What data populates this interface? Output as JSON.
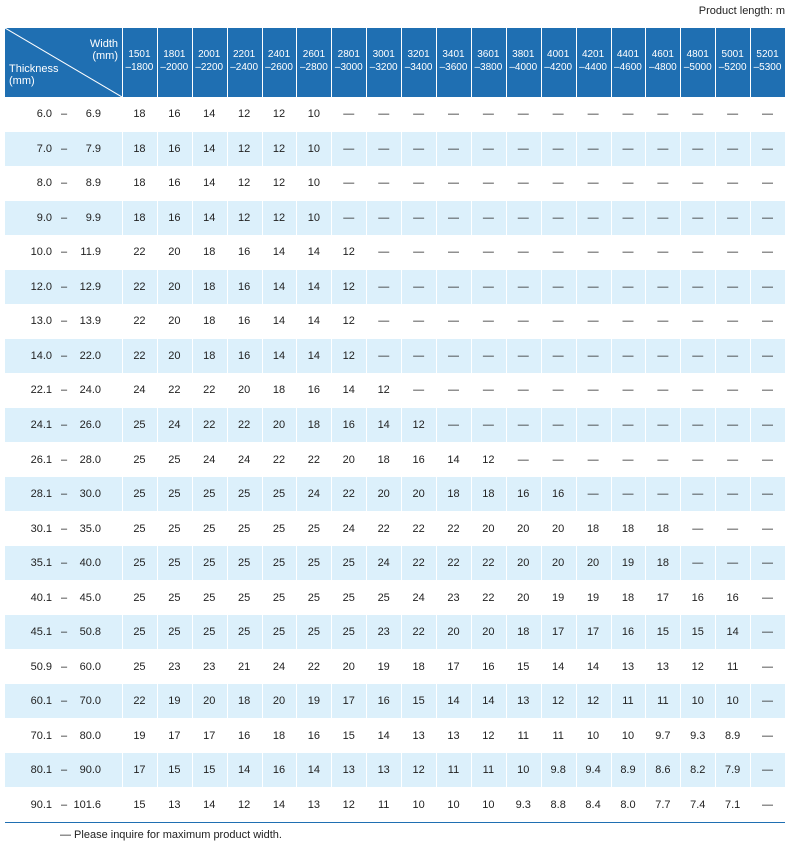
{
  "note_top": "Product length: m",
  "header": {
    "width": [
      "Width",
      "(mm)"
    ],
    "thickness": [
      "Thickness",
      "(mm)"
    ]
  },
  "columns": [
    [
      "1501",
      "–1800"
    ],
    [
      "1801",
      "–2000"
    ],
    [
      "2001",
      "–2200"
    ],
    [
      "2201",
      "–2400"
    ],
    [
      "2401",
      "–2600"
    ],
    [
      "2601",
      "–2800"
    ],
    [
      "2801",
      "–3000"
    ],
    [
      "3001",
      "–3200"
    ],
    [
      "3201",
      "–3400"
    ],
    [
      "3401",
      "–3600"
    ],
    [
      "3601",
      "–3800"
    ],
    [
      "3801",
      "–4000"
    ],
    [
      "4001",
      "–4200"
    ],
    [
      "4201",
      "–4400"
    ],
    [
      "4401",
      "–4600"
    ],
    [
      "4601",
      "–4800"
    ],
    [
      "4801",
      "–5000"
    ],
    [
      "5001",
      "–5200"
    ],
    [
      "5201",
      "–5300"
    ]
  ],
  "range_separator": "–",
  "rows": [
    {
      "from": "6.0",
      "to": "6.9",
      "values": [
        "18",
        "16",
        "14",
        "12",
        "12",
        "10",
        "—",
        "—",
        "—",
        "—",
        "—",
        "—",
        "—",
        "—",
        "—",
        "—",
        "—",
        "—",
        "—"
      ]
    },
    {
      "from": "7.0",
      "to": "7.9",
      "values": [
        "18",
        "16",
        "14",
        "12",
        "12",
        "10",
        "—",
        "—",
        "—",
        "—",
        "—",
        "—",
        "—",
        "—",
        "—",
        "—",
        "—",
        "—",
        "—"
      ]
    },
    {
      "from": "8.0",
      "to": "8.9",
      "values": [
        "18",
        "16",
        "14",
        "12",
        "12",
        "10",
        "—",
        "—",
        "—",
        "—",
        "—",
        "—",
        "—",
        "—",
        "—",
        "—",
        "—",
        "—",
        "—"
      ]
    },
    {
      "from": "9.0",
      "to": "9.9",
      "values": [
        "18",
        "16",
        "14",
        "12",
        "12",
        "10",
        "—",
        "—",
        "—",
        "—",
        "—",
        "—",
        "—",
        "—",
        "—",
        "—",
        "—",
        "—",
        "—"
      ]
    },
    {
      "from": "10.0",
      "to": "11.9",
      "values": [
        "22",
        "20",
        "18",
        "16",
        "14",
        "14",
        "12",
        "—",
        "—",
        "—",
        "—",
        "—",
        "—",
        "—",
        "—",
        "—",
        "—",
        "—",
        "—"
      ]
    },
    {
      "from": "12.0",
      "to": "12.9",
      "values": [
        "22",
        "20",
        "18",
        "16",
        "14",
        "14",
        "12",
        "—",
        "—",
        "—",
        "—",
        "—",
        "—",
        "—",
        "—",
        "—",
        "—",
        "—",
        "—"
      ]
    },
    {
      "from": "13.0",
      "to": "13.9",
      "values": [
        "22",
        "20",
        "18",
        "16",
        "14",
        "14",
        "12",
        "—",
        "—",
        "—",
        "—",
        "—",
        "—",
        "—",
        "—",
        "—",
        "—",
        "—",
        "—"
      ]
    },
    {
      "from": "14.0",
      "to": "22.0",
      "values": [
        "22",
        "20",
        "18",
        "16",
        "14",
        "14",
        "12",
        "—",
        "—",
        "—",
        "—",
        "—",
        "—",
        "—",
        "—",
        "—",
        "—",
        "—",
        "—"
      ]
    },
    {
      "from": "22.1",
      "to": "24.0",
      "values": [
        "24",
        "22",
        "22",
        "20",
        "18",
        "16",
        "14",
        "12",
        "—",
        "—",
        "—",
        "—",
        "—",
        "—",
        "—",
        "—",
        "—",
        "—",
        "—"
      ]
    },
    {
      "from": "24.1",
      "to": "26.0",
      "values": [
        "25",
        "24",
        "22",
        "22",
        "20",
        "18",
        "16",
        "14",
        "12",
        "—",
        "—",
        "—",
        "—",
        "—",
        "—",
        "—",
        "—",
        "—",
        "—"
      ]
    },
    {
      "from": "26.1",
      "to": "28.0",
      "values": [
        "25",
        "25",
        "24",
        "24",
        "22",
        "22",
        "20",
        "18",
        "16",
        "14",
        "12",
        "—",
        "—",
        "—",
        "—",
        "—",
        "—",
        "—",
        "—"
      ]
    },
    {
      "from": "28.1",
      "to": "30.0",
      "values": [
        "25",
        "25",
        "25",
        "25",
        "25",
        "24",
        "22",
        "20",
        "20",
        "18",
        "18",
        "16",
        "16",
        "—",
        "—",
        "—",
        "—",
        "—",
        "—"
      ]
    },
    {
      "from": "30.1",
      "to": "35.0",
      "values": [
        "25",
        "25",
        "25",
        "25",
        "25",
        "25",
        "24",
        "22",
        "22",
        "22",
        "20",
        "20",
        "20",
        "18",
        "18",
        "18",
        "—",
        "—",
        "—"
      ]
    },
    {
      "from": "35.1",
      "to": "40.0",
      "values": [
        "25",
        "25",
        "25",
        "25",
        "25",
        "25",
        "25",
        "24",
        "22",
        "22",
        "22",
        "20",
        "20",
        "20",
        "19",
        "18",
        "—",
        "—",
        "—"
      ]
    },
    {
      "from": "40.1",
      "to": "45.0",
      "values": [
        "25",
        "25",
        "25",
        "25",
        "25",
        "25",
        "25",
        "25",
        "24",
        "23",
        "22",
        "20",
        "19",
        "19",
        "18",
        "17",
        "16",
        "16",
        "—"
      ]
    },
    {
      "from": "45.1",
      "to": "50.8",
      "values": [
        "25",
        "25",
        "25",
        "25",
        "25",
        "25",
        "25",
        "23",
        "22",
        "20",
        "20",
        "18",
        "17",
        "17",
        "16",
        "15",
        "15",
        "14",
        "—"
      ]
    },
    {
      "from": "50.9",
      "to": "60.0",
      "values": [
        "25",
        "23",
        "23",
        "21",
        "24",
        "22",
        "20",
        "19",
        "18",
        "17",
        "16",
        "15",
        "14",
        "14",
        "13",
        "13",
        "12",
        "11",
        "—"
      ]
    },
    {
      "from": "60.1",
      "to": "70.0",
      "values": [
        "22",
        "19",
        "20",
        "18",
        "20",
        "19",
        "17",
        "16",
        "15",
        "14",
        "14",
        "13",
        "12",
        "12",
        "11",
        "11",
        "10",
        "10",
        "—"
      ]
    },
    {
      "from": "70.1",
      "to": "80.0",
      "values": [
        "19",
        "17",
        "17",
        "16",
        "18",
        "16",
        "15",
        "14",
        "13",
        "13",
        "12",
        "11",
        "11",
        "10",
        "10",
        "9.7",
        "9.3",
        "8.9",
        "—"
      ]
    },
    {
      "from": "80.1",
      "to": "90.0",
      "values": [
        "17",
        "15",
        "15",
        "14",
        "16",
        "14",
        "13",
        "13",
        "12",
        "11",
        "11",
        "10",
        "9.8",
        "9.4",
        "8.9",
        "8.6",
        "8.2",
        "7.9",
        "—"
      ]
    },
    {
      "from": "90.1",
      "to": "101.6",
      "values": [
        "15",
        "13",
        "14",
        "12",
        "14",
        "13",
        "12",
        "11",
        "10",
        "10",
        "10",
        "9.3",
        "8.8",
        "8.4",
        "8.0",
        "7.7",
        "7.4",
        "7.1",
        "—"
      ]
    }
  ],
  "footnote": "— Please inquire for maximum product width."
}
